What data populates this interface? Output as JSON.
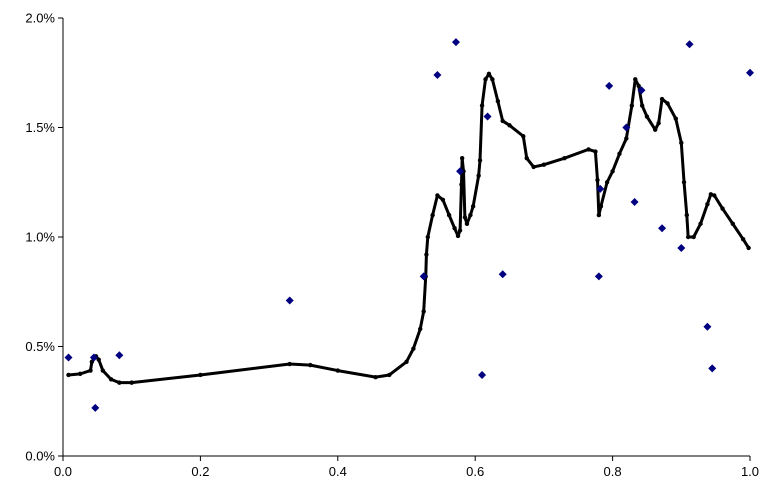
{
  "chart_data": {
    "type": "scatter",
    "title": "",
    "xlabel": "",
    "ylabel": "",
    "xlim": [
      0,
      1
    ],
    "ylim": [
      0,
      2
    ],
    "grid": false,
    "legend": "none",
    "x_ticks": [
      "0.0",
      "0.2",
      "0.4",
      "0.6",
      "0.8",
      "1.0"
    ],
    "x_tick_values": [
      0,
      0.2,
      0.4,
      0.6,
      0.8,
      1.0
    ],
    "y_ticks": [
      "0.0%",
      "0.5%",
      "1.0%",
      "1.5%",
      "2.0%"
    ],
    "y_tick_values": [
      0,
      0.5,
      1.0,
      1.5,
      2.0
    ],
    "series": [
      {
        "kind": "scatter",
        "color": "#000080",
        "marker": "diamond",
        "points": [
          [
            0.008,
            0.45
          ],
          [
            0.045,
            0.45
          ],
          [
            0.047,
            0.22
          ],
          [
            0.082,
            0.46
          ],
          [
            0.33,
            0.71
          ],
          [
            0.525,
            0.82
          ],
          [
            0.545,
            1.74
          ],
          [
            0.572,
            1.89
          ],
          [
            0.578,
            1.3
          ],
          [
            0.61,
            0.37
          ],
          [
            0.618,
            1.55
          ],
          [
            0.64,
            0.83
          ],
          [
            0.78,
            0.82
          ],
          [
            0.782,
            1.22
          ],
          [
            0.795,
            1.69
          ],
          [
            0.82,
            1.5
          ],
          [
            0.832,
            1.16
          ],
          [
            0.842,
            1.67
          ],
          [
            0.872,
            1.04
          ],
          [
            0.9,
            0.95
          ],
          [
            0.912,
            1.88
          ],
          [
            0.938,
            0.59
          ],
          [
            0.945,
            0.4
          ],
          [
            1.0,
            1.75
          ]
        ]
      },
      {
        "kind": "line",
        "color": "#000000",
        "points": [
          [
            0.008,
            0.37
          ],
          [
            0.025,
            0.375
          ],
          [
            0.04,
            0.39
          ],
          [
            0.042,
            0.43
          ],
          [
            0.048,
            0.455
          ],
          [
            0.052,
            0.44
          ],
          [
            0.058,
            0.39
          ],
          [
            0.07,
            0.35
          ],
          [
            0.082,
            0.335
          ],
          [
            0.1,
            0.335
          ],
          [
            0.2,
            0.37
          ],
          [
            0.33,
            0.42
          ],
          [
            0.36,
            0.415
          ],
          [
            0.4,
            0.39
          ],
          [
            0.455,
            0.36
          ],
          [
            0.475,
            0.37
          ],
          [
            0.5,
            0.43
          ],
          [
            0.51,
            0.49
          ],
          [
            0.52,
            0.58
          ],
          [
            0.525,
            0.66
          ],
          [
            0.528,
            0.82
          ],
          [
            0.529,
            0.92
          ],
          [
            0.531,
            1.0
          ],
          [
            0.538,
            1.1
          ],
          [
            0.545,
            1.19
          ],
          [
            0.553,
            1.17
          ],
          [
            0.562,
            1.1
          ],
          [
            0.57,
            1.04
          ],
          [
            0.575,
            1.005
          ],
          [
            0.578,
            1.03
          ],
          [
            0.58,
            1.24
          ],
          [
            0.581,
            1.36
          ],
          [
            0.583,
            1.3
          ],
          [
            0.585,
            1.09
          ],
          [
            0.588,
            1.06
          ],
          [
            0.593,
            1.1
          ],
          [
            0.597,
            1.14
          ],
          [
            0.605,
            1.28
          ],
          [
            0.607,
            1.35
          ],
          [
            0.61,
            1.6
          ],
          [
            0.615,
            1.72
          ],
          [
            0.62,
            1.745
          ],
          [
            0.625,
            1.72
          ],
          [
            0.633,
            1.62
          ],
          [
            0.64,
            1.53
          ],
          [
            0.65,
            1.51
          ],
          [
            0.67,
            1.46
          ],
          [
            0.675,
            1.36
          ],
          [
            0.685,
            1.32
          ],
          [
            0.7,
            1.33
          ],
          [
            0.73,
            1.36
          ],
          [
            0.765,
            1.4
          ],
          [
            0.775,
            1.39
          ],
          [
            0.778,
            1.26
          ],
          [
            0.78,
            1.1
          ],
          [
            0.783,
            1.14
          ],
          [
            0.792,
            1.25
          ],
          [
            0.8,
            1.3
          ],
          [
            0.81,
            1.38
          ],
          [
            0.82,
            1.45
          ],
          [
            0.828,
            1.6
          ],
          [
            0.833,
            1.72
          ],
          [
            0.838,
            1.69
          ],
          [
            0.843,
            1.6
          ],
          [
            0.85,
            1.55
          ],
          [
            0.862,
            1.49
          ],
          [
            0.867,
            1.52
          ],
          [
            0.872,
            1.63
          ],
          [
            0.88,
            1.61
          ],
          [
            0.892,
            1.54
          ],
          [
            0.9,
            1.43
          ],
          [
            0.904,
            1.25
          ],
          [
            0.908,
            1.1
          ],
          [
            0.91,
            1.0
          ],
          [
            0.918,
            1.0
          ],
          [
            0.928,
            1.06
          ],
          [
            0.938,
            1.15
          ],
          [
            0.943,
            1.195
          ],
          [
            0.948,
            1.19
          ],
          [
            0.96,
            1.13
          ],
          [
            0.975,
            1.06
          ],
          [
            0.99,
            0.99
          ],
          [
            0.998,
            0.95
          ]
        ]
      }
    ]
  }
}
